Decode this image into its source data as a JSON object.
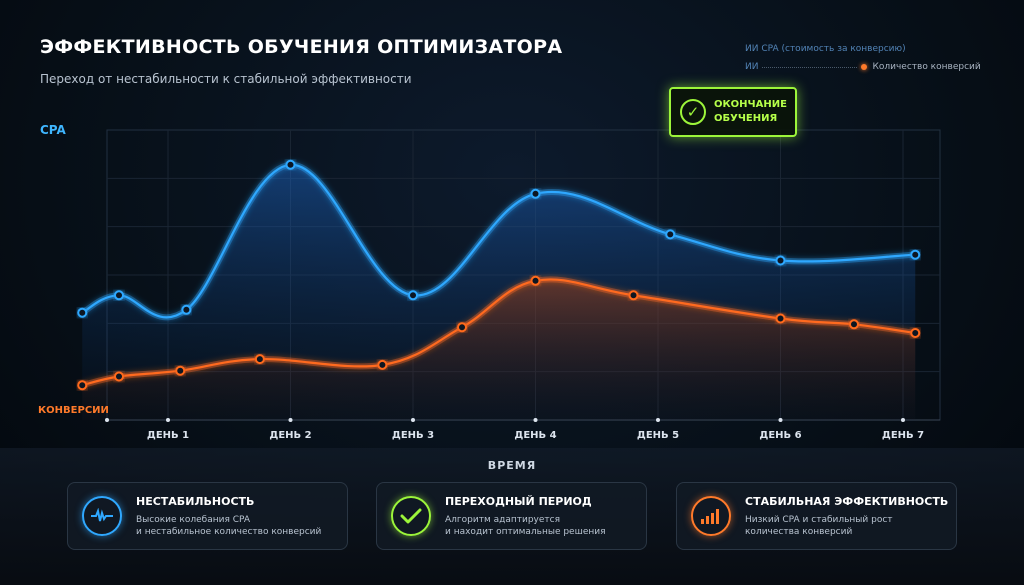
{
  "title": "ЭФФЕКТИВНОСТЬ ОБУЧЕНИЯ ОПТИМИЗАТОРА",
  "subtitle": "Переход от нестабильности к стабильной эффективности",
  "legend": {
    "cpa_label": "ИИ CPA (стоимость за конверсию)",
    "conv_prefix": "ИИ",
    "conv_label": "Количество конверсий"
  },
  "marker": {
    "line1": "ОКОНЧАНИЕ",
    "line2": "ОБУЧЕНИЯ"
  },
  "colors": {
    "cpa": "#2fa8ff",
    "conversions": "#ff6a1f",
    "marker": "#9cf53a"
  },
  "chart_data": {
    "type": "line",
    "title": "ЭФФЕКТИВНОСТЬ ОБУЧЕНИЯ ОПТИМИЗАТОРА",
    "subtitle": "Переход от нестабильности к стабильной эффективности",
    "xlabel": "ВРЕМЯ",
    "y_left_label": "CPA",
    "y_right_label": "КОНВЕРСИИ",
    "x_labels": [
      "ДЕНЬ 1",
      "ДЕНЬ 2",
      "ДЕНЬ 3",
      "ДЕНЬ 4",
      "ДЕНЬ 5",
      "ДЕНЬ 6",
      "ДЕНЬ 7"
    ],
    "x_range": [
      0.3,
      7.3
    ],
    "y_range": [
      0,
      100
    ],
    "grid": true,
    "legend_position": "top-right",
    "series": [
      {
        "name": "CPA",
        "color": "#2fa8ff",
        "x": [
          0.3,
          0.6,
          1.15,
          2.0,
          3.0,
          4.0,
          5.1,
          6.0,
          7.1
        ],
        "y": [
          37,
          43,
          38,
          88,
          43,
          78,
          64,
          55,
          57
        ]
      },
      {
        "name": "Количество конверсий",
        "color": "#ff6a1f",
        "x": [
          0.3,
          0.6,
          1.1,
          1.75,
          2.75,
          3.4,
          4.0,
          4.8,
          6.0,
          6.6,
          7.1
        ],
        "y": [
          12,
          15,
          17,
          21,
          19,
          32,
          48,
          43,
          35,
          33,
          30
        ]
      }
    ],
    "annotation": {
      "label": "ОКОНЧАНИЕ ОБУЧЕНИЯ",
      "x": 5.65
    }
  },
  "cards": [
    {
      "title": "НЕСТАБИЛЬНОСТЬ",
      "desc1": "Высокие колебания CPA",
      "desc2": "и нестабильное количество конверсий",
      "icon": "pulse-icon",
      "color": "#2fa8ff"
    },
    {
      "title": "ПЕРЕХОДНЫЙ ПЕРИОД",
      "desc1": "Алгоритм адаптируется",
      "desc2": "и находит оптимальные решения",
      "icon": "check-icon",
      "color": "#9cf53a"
    },
    {
      "title": "СТАБИЛЬНАЯ ЭФФЕКТИВНОСТЬ",
      "desc1": "Низкий CPA и стабильный рост",
      "desc2": "количества конверсий",
      "icon": "bars-icon",
      "color": "#ff7a2a"
    }
  ]
}
